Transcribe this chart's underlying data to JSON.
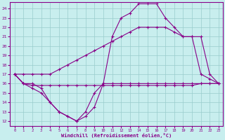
{
  "bg_color": "#c8eeee",
  "line_color": "#880088",
  "grid_color": "#99cccc",
  "xlabel": "Windchill (Refroidissement éolien,°C)",
  "ylim": [
    11.5,
    24.7
  ],
  "xlim": [
    -0.5,
    23.5
  ],
  "x_ticks": [
    0,
    1,
    2,
    3,
    4,
    5,
    6,
    7,
    8,
    9,
    10,
    11,
    12,
    13,
    14,
    15,
    16,
    17,
    18,
    19,
    20,
    21,
    22,
    23
  ],
  "y_ticks": [
    12,
    13,
    14,
    15,
    16,
    17,
    18,
    19,
    20,
    21,
    22,
    23,
    24
  ],
  "series": [
    {
      "x": [
        0,
        1,
        2,
        3,
        4,
        5,
        6,
        7,
        8,
        9,
        10,
        11,
        12,
        13,
        14,
        15,
        16,
        17,
        18,
        19,
        20,
        21,
        22,
        23
      ],
      "y": [
        17,
        16,
        15.5,
        15,
        14,
        13,
        12.5,
        12,
        12.5,
        13.5,
        16,
        16,
        16,
        16,
        16,
        16,
        16,
        16,
        16,
        16,
        16,
        16,
        16,
        16
      ]
    },
    {
      "x": [
        0,
        1,
        2,
        3,
        4,
        5,
        6,
        7,
        8,
        9,
        10,
        11,
        12,
        13,
        14,
        15,
        16,
        17,
        18,
        19,
        20,
        21,
        22,
        23
      ],
      "y": [
        17,
        16,
        15.8,
        15.8,
        15.8,
        15.8,
        15.8,
        15.8,
        15.8,
        15.8,
        15.8,
        15.8,
        15.8,
        15.8,
        15.8,
        15.8,
        15.8,
        15.8,
        15.8,
        15.8,
        15.8,
        16,
        16,
        16
      ]
    },
    {
      "x": [
        0,
        1,
        2,
        3,
        4,
        5,
        6,
        7,
        8,
        9,
        10,
        11,
        12,
        13,
        14,
        15,
        16,
        17,
        18,
        19,
        20,
        21,
        22,
        23
      ],
      "y": [
        17,
        17,
        17,
        17,
        17,
        17.5,
        18,
        18.5,
        19,
        19.5,
        20,
        20.5,
        21,
        21.5,
        22,
        22,
        22,
        22,
        21.5,
        21,
        21,
        21,
        17,
        16
      ]
    },
    {
      "x": [
        0,
        1,
        2,
        3,
        4,
        5,
        6,
        7,
        8,
        9,
        10,
        11,
        12,
        13,
        14,
        15,
        16,
        17,
        18,
        19,
        20,
        21,
        22,
        23
      ],
      "y": [
        17,
        16,
        16,
        15.5,
        14,
        13,
        12.5,
        12,
        13,
        15,
        16,
        21,
        23,
        23.5,
        24.5,
        24.5,
        24.5,
        23,
        22,
        21,
        21,
        17,
        16.5,
        16
      ]
    }
  ]
}
